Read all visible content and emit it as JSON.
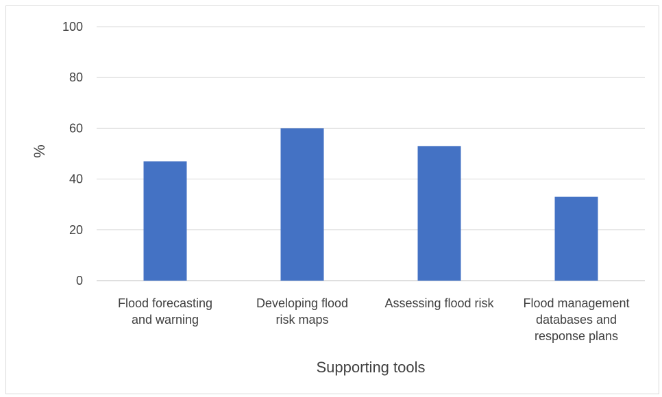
{
  "chart_data": {
    "type": "bar",
    "categories": [
      "Flood forecasting and warning",
      "Developing flood risk maps",
      "Assessing flood risk",
      "Flood management databases and response plans"
    ],
    "category_label_lines": [
      [
        "Flood forecasting",
        "and warning"
      ],
      [
        "Developing flood",
        "risk maps"
      ],
      [
        "Assessing flood risk"
      ],
      [
        "Flood management",
        "databases and",
        "response plans"
      ]
    ],
    "values": [
      47,
      60,
      53,
      33
    ],
    "xlabel": "Supporting tools",
    "ylabel": "%",
    "ylim": [
      0,
      100
    ],
    "yticks": [
      0,
      20,
      40,
      60,
      80,
      100
    ],
    "grid": true,
    "colors": {
      "bar": "#4472C4",
      "grid": "#d9d9d9",
      "axis": "#bfbfbf"
    }
  }
}
